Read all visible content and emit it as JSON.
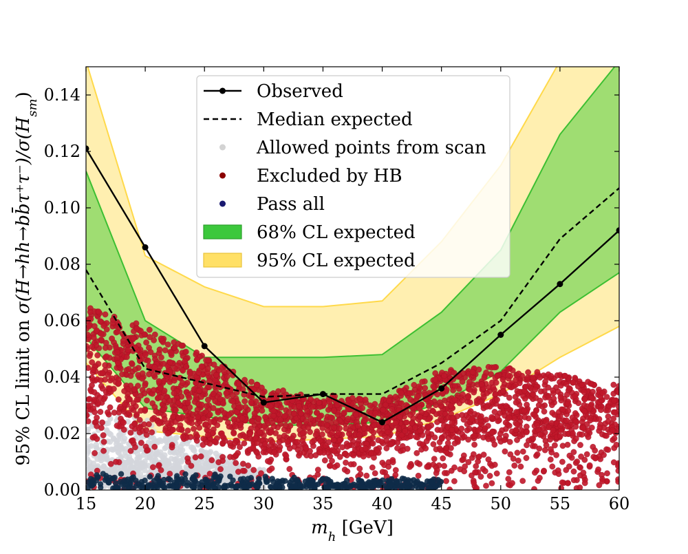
{
  "chart_data": {
    "type": "line",
    "title": "",
    "xlabel": "m_h [GeV]",
    "xlabel_parts": {
      "symbol": "m",
      "subscript": "h",
      "unit": " [GeV]"
    },
    "ylabel": "95% CL limit on σ(H→hh→bb̄τ⁺τ⁻)/σ(H_sm)",
    "ylabel_parts": {
      "prefix": "95% CL limit on ",
      "formula": "σ(H→hh→bb̄τ⁺τ⁻)/σ(H",
      "subscript": "sm",
      "suffix": ")"
    },
    "xlim": [
      15,
      60
    ],
    "ylim": [
      0.0,
      0.15
    ],
    "x_ticks": [
      "15",
      "20",
      "25",
      "30",
      "35",
      "40",
      "45",
      "50",
      "55",
      "60"
    ],
    "y_ticks": [
      "0.00",
      "0.02",
      "0.04",
      "0.06",
      "0.08",
      "0.10",
      "0.12",
      "0.14"
    ],
    "grid": false,
    "legend_position": "top-center",
    "x": [
      15,
      20,
      25,
      30,
      35,
      40,
      45,
      50,
      55,
      60
    ],
    "series": [
      {
        "name": "Observed",
        "style": "solid-line-markers",
        "color": "#000000",
        "values": [
          0.121,
          0.086,
          0.051,
          0.031,
          0.034,
          0.024,
          0.036,
          0.055,
          0.073,
          0.092
        ]
      },
      {
        "name": "Median expected",
        "style": "dashed-line",
        "color": "#000000",
        "values": [
          0.078,
          0.043,
          0.038,
          0.033,
          0.034,
          0.034,
          0.045,
          0.06,
          0.089,
          0.107
        ]
      }
    ],
    "bands": [
      {
        "name": "95% CL expected",
        "fill": "#ffefb0",
        "edge": "#ffd94a",
        "lower": [
          0.045,
          0.021,
          0.019,
          0.017,
          0.018,
          0.019,
          0.025,
          0.034,
          0.047,
          0.058
        ],
        "upper": [
          0.152,
          0.083,
          0.072,
          0.065,
          0.065,
          0.067,
          0.088,
          0.115,
          0.152,
          0.152
        ]
      },
      {
        "name": "68% CL expected",
        "fill": "#9fdd72",
        "edge": "#3cbf32",
        "lower": [
          0.054,
          0.029,
          0.026,
          0.023,
          0.023,
          0.024,
          0.031,
          0.042,
          0.063,
          0.077
        ],
        "upper": [
          0.113,
          0.06,
          0.047,
          0.047,
          0.047,
          0.048,
          0.063,
          0.085,
          0.126,
          0.152
        ]
      }
    ],
    "scatter_series": [
      {
        "name": "Allowed points from scan",
        "color": "#d3d6dc",
        "region": {
          "x": [
            15,
            30
          ],
          "y_upper": [
            [
              15,
              0.031
            ],
            [
              20,
              0.025
            ],
            [
              25,
              0.015
            ],
            [
              30,
              0.007
            ]
          ]
        }
      },
      {
        "name": "Excluded by HB",
        "color": "#c0172a",
        "region": {
          "x": [
            15,
            60
          ],
          "y_upper": [
            [
              15,
              0.065
            ],
            [
              20,
              0.058
            ],
            [
              25,
              0.048
            ],
            [
              30,
              0.036
            ],
            [
              35,
              0.034
            ],
            [
              40,
              0.032
            ],
            [
              45,
              0.043
            ],
            [
              50,
              0.044
            ],
            [
              55,
              0.041
            ],
            [
              60,
              0.037
            ]
          ]
        }
      },
      {
        "name": "Pass all",
        "color": "#0e2b48",
        "region": {
          "x": [
            15,
            45
          ],
          "y_upper": [
            [
              15,
              0.006
            ],
            [
              25,
              0.006
            ],
            [
              30,
              0.005
            ],
            [
              37,
              0.004
            ],
            [
              45,
              0.004
            ]
          ]
        }
      }
    ],
    "legend": [
      {
        "label": "Observed",
        "kind": "line-marker",
        "color": "#000000"
      },
      {
        "label": "Median expected",
        "kind": "dashed",
        "color": "#000000"
      },
      {
        "label": "Allowed points from scan",
        "kind": "dot",
        "color": "#d3d3d3"
      },
      {
        "label": "Excluded by HB",
        "kind": "dot",
        "color": "#8b0000"
      },
      {
        "label": "Pass all",
        "kind": "dot",
        "color": "#191970"
      },
      {
        "label": "68% CL expected",
        "kind": "patch",
        "color": "#3cc83c",
        "edge": "#2ca02c"
      },
      {
        "label": "95% CL expected",
        "kind": "patch",
        "color": "#ffe066",
        "edge": "#e8c33a"
      }
    ]
  }
}
